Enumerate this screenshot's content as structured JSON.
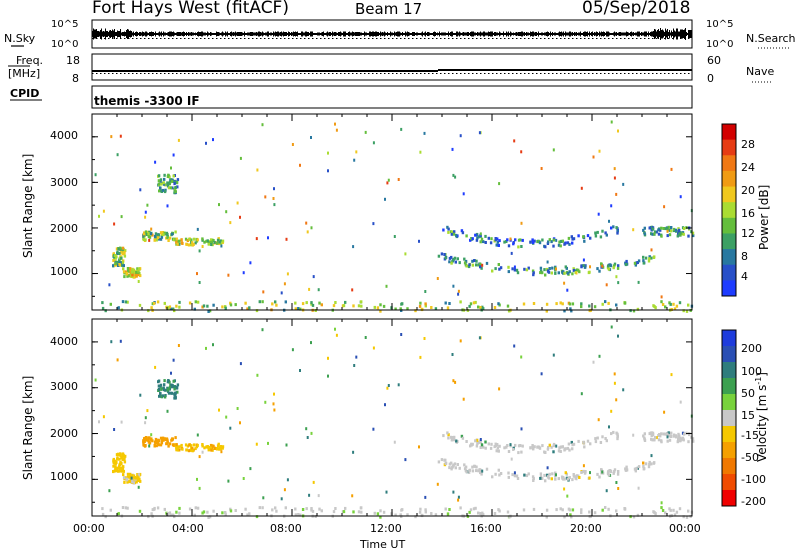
{
  "header": {
    "radar": "Fort Hays West (fitACF)",
    "beam": "Beam 17",
    "date": "05/Sep/2018"
  },
  "top_panels": {
    "nsky_label": "N.Sky",
    "nsky_ticks": [
      "10^5",
      "10^0"
    ],
    "nsearch_label": "N.Search",
    "nsearch_ticks": [
      "10^5",
      "10^0"
    ],
    "freq_label_line1": "Freq.",
    "freq_label_line2": "[MHz]",
    "freq_ticks": [
      "18",
      "8"
    ],
    "nave_label": "Nave",
    "nave_ticks": [
      "60",
      "0"
    ],
    "cpid_label": "CPID",
    "cpid_value": "themis -3300 IF"
  },
  "colors": {
    "power": [
      "#1e3cff",
      "#2850c8",
      "#2878a0",
      "#3ca064",
      "#64be3c",
      "#aadc32",
      "#f0c81e",
      "#f09b14",
      "#f07814",
      "#e63c14",
      "#d20000"
    ],
    "velocity": [
      "#1e3cdc",
      "#2a4fb4",
      "#2f7d7d",
      "#3ca050",
      "#78d23c",
      "#c8c8c8",
      "#f5c800",
      "#f5a000",
      "#f07800",
      "#f04b00",
      "#f00000"
    ],
    "velocity_ground": "#c8c8c8"
  },
  "chart_data": [
    {
      "type": "scatter",
      "name": "power",
      "title": "",
      "xlabel": "",
      "ylabel": "Slant Range [km]",
      "xlim": [
        0,
        24
      ],
      "ylim": [
        200,
        4500
      ],
      "yticks": [
        "1000",
        "2000",
        "3000",
        "4000"
      ],
      "colorbar_label": "Power [dB]",
      "colorbar_ticks": [
        "28",
        "24",
        "20",
        "16",
        "12",
        "8",
        "4"
      ],
      "clim": [
        0,
        32
      ],
      "grid": false
    },
    {
      "type": "scatter",
      "name": "velocity",
      "title": "",
      "xlabel": "Time UT",
      "ylabel": "Slant Range [km]",
      "xlim": [
        0,
        24
      ],
      "ylim": [
        200,
        4500
      ],
      "xticks": [
        "00:00",
        "04:00",
        "08:00",
        "12:00",
        "16:00",
        "20:00",
        "00:00"
      ],
      "yticks": [
        "1000",
        "2000",
        "3000",
        "4000"
      ],
      "colorbar_label": "Velocity [m s",
      "colorbar_label_sup": "-1",
      "colorbar_label_end": "]",
      "colorbar_ticks": [
        "200",
        "100",
        "50",
        "15",
        "-15",
        "-50",
        "-100",
        "-200"
      ],
      "clim": [
        -250,
        250
      ],
      "grid": false,
      "scatter_regions": [
        {
          "t": [
            0.8,
            1.3
          ],
          "r": [
            1200,
            1600
          ],
          "v": -70,
          "p": 14
        },
        {
          "t": [
            1.2,
            1.9
          ],
          "r": [
            950,
            1150
          ],
          "v": -60,
          "p": 18
        },
        {
          "t": [
            2.0,
            3.3
          ],
          "r": [
            1750,
            1950
          ],
          "v": -150,
          "p": 14
        },
        {
          "t": [
            3.3,
            5.2
          ],
          "r": [
            1650,
            1800
          ],
          "v": -90,
          "p": 16
        },
        {
          "t": [
            2.6,
            3.4
          ],
          "r": [
            2800,
            3200
          ],
          "v": 60,
          "p": 10
        },
        {
          "t": [
            0.3,
            24.0
          ],
          "r": [
            200,
            420
          ],
          "v": -30,
          "p": 14
        },
        {
          "t": [
            13.8,
            22.5
          ],
          "r": [
            1000,
            1500
          ],
          "v": 0,
          "p": 10
        },
        {
          "t": [
            14.0,
            21.0
          ],
          "r": [
            1600,
            2100
          ],
          "v": 0,
          "p": 8
        },
        {
          "t": [
            22.0,
            24.0
          ],
          "r": [
            1850,
            2050
          ],
          "v": 0,
          "p": 10
        }
      ]
    }
  ]
}
